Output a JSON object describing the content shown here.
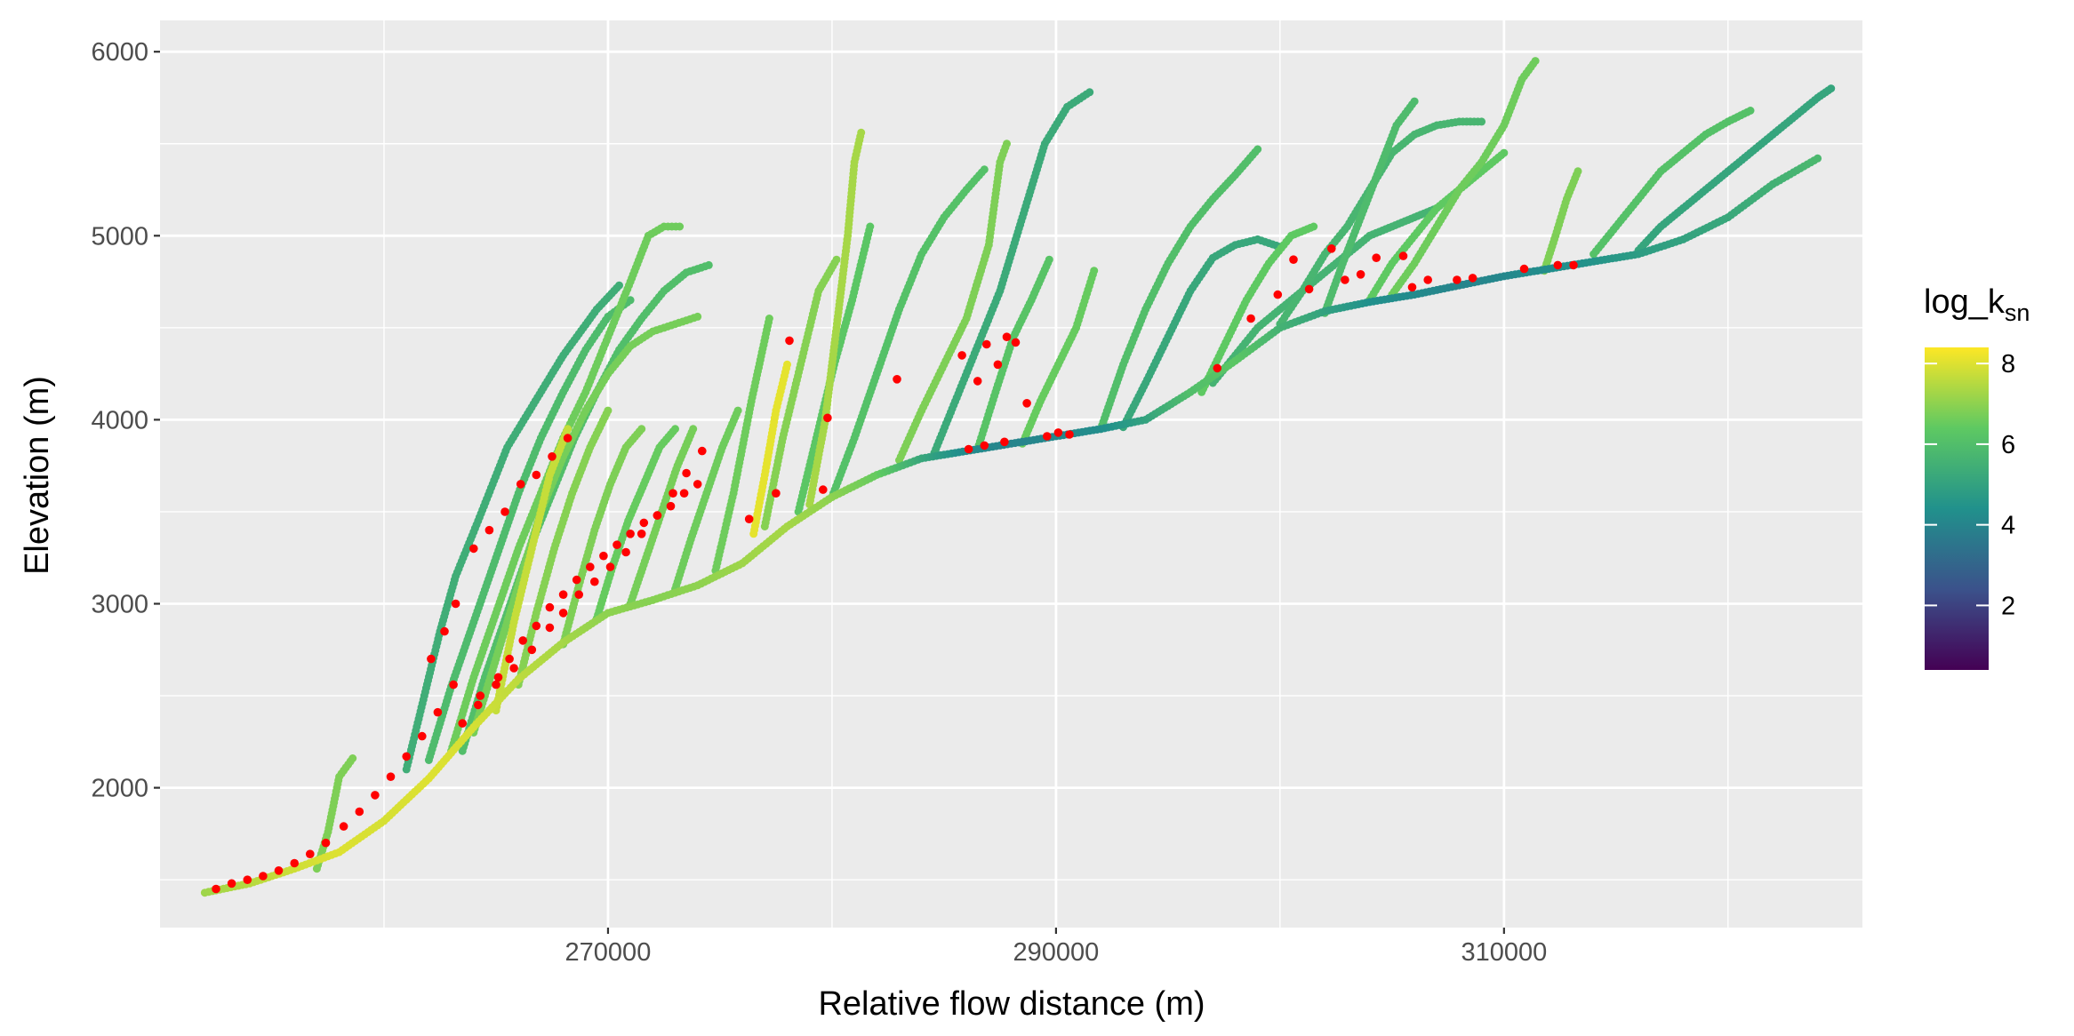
{
  "chart_data": {
    "type": "scatter",
    "title": "",
    "xlabel": "Relative flow distance (m)",
    "ylabel": "Elevation (m)",
    "xlim": [
      250000,
      326000
    ],
    "ylim": [
      1240,
      6170
    ],
    "x_ticks": [
      270000,
      290000,
      310000
    ],
    "x_tick_labels": [
      "270000",
      "290000",
      "310000"
    ],
    "y_ticks": [
      2000,
      3000,
      4000,
      5000,
      6000
    ],
    "y_tick_labels": [
      "2000",
      "3000",
      "4000",
      "5000",
      "6000"
    ],
    "grid": true,
    "background": "#ebebeb",
    "legend": {
      "title_main": "log_k",
      "title_sub": "sn",
      "placement": "right",
      "range": [
        0.4,
        8.4
      ],
      "breaks": [
        2,
        4,
        6,
        8
      ],
      "break_labels": [
        "2",
        "4",
        "6",
        "8"
      ],
      "colors": [
        "#440154",
        "#3b528b",
        "#21918c",
        "#5ec962",
        "#fde725"
      ]
    },
    "knickpoint_color": "#ff0000",
    "trunk": {
      "x": [
        252000,
        254000,
        256000,
        258000,
        260000,
        262000,
        264000,
        266000,
        268000,
        270000,
        272000,
        274000,
        276000,
        278000,
        280000,
        282000,
        284000,
        286000,
        288000,
        290000,
        292000,
        294000,
        296000,
        298000,
        300000,
        302000,
        304000,
        306000,
        308000,
        310000,
        312000,
        314000,
        316000,
        318000,
        320000,
        322000,
        324000
      ],
      "y": [
        1430,
        1480,
        1560,
        1650,
        1820,
        2050,
        2330,
        2590,
        2790,
        2950,
        3020,
        3100,
        3220,
        3420,
        3580,
        3700,
        3790,
        3830,
        3870,
        3910,
        3950,
        4000,
        4150,
        4320,
        4500,
        4590,
        4640,
        4680,
        4730,
        4780,
        4820,
        4860,
        4900,
        4980,
        5100,
        5280,
        5420
      ],
      "log_ksn": [
        7.2,
        7.5,
        7.8,
        8.0,
        7.9,
        8.0,
        7.9,
        7.6,
        7.3,
        7.0,
        6.9,
        7.0,
        7.2,
        7.3,
        7.0,
        6.5,
        5.2,
        4.2,
        4.0,
        4.1,
        4.3,
        5.0,
        6.0,
        6.3,
        5.6,
        5.0,
        4.4,
        4.2,
        4.0,
        4.1,
        4.3,
        4.5,
        4.8,
        5.0,
        5.2,
        5.5,
        5.8
      ]
    },
    "tributaries": [
      {
        "x": [
          257000,
          257500,
          258000,
          258600
        ],
        "y": [
          1560,
          1760,
          2060,
          2160
        ],
        "log_ksn": 6.8
      },
      {
        "x": [
          261000,
          261800,
          262500,
          263200,
          264200,
          265500,
          266500,
          268000,
          269500,
          270500
        ],
        "y": [
          2100,
          2500,
          2850,
          3150,
          3450,
          3850,
          4050,
          4350,
          4600,
          4730
        ],
        "log_ksn": 5.4
      },
      {
        "x": [
          262000,
          263000,
          264000,
          265000,
          266000,
          267000,
          268000,
          269000,
          270000,
          271000
        ],
        "y": [
          2150,
          2550,
          2900,
          3250,
          3600,
          3900,
          4150,
          4380,
          4560,
          4650
        ],
        "log_ksn": 5.9
      },
      {
        "x": [
          263000,
          264000,
          265000,
          266000,
          267000,
          268000,
          269000,
          270000,
          271000,
          271800,
          272500,
          273200
        ],
        "y": [
          2200,
          2600,
          2950,
          3300,
          3600,
          3900,
          4150,
          4450,
          4750,
          5000,
          5050,
          5050
        ],
        "log_ksn": 6.6
      },
      {
        "x": [
          263500,
          264500,
          265500,
          266500,
          267500,
          268500,
          269500,
          270500,
          271500,
          272500,
          273500,
          274500
        ],
        "y": [
          2200,
          2600,
          2950,
          3300,
          3600,
          3900,
          4150,
          4380,
          4550,
          4700,
          4800,
          4840
        ],
        "log_ksn": 6.0
      },
      {
        "x": [
          264000,
          265000,
          266000,
          267000,
          268000,
          269000,
          270000,
          271000,
          272000,
          273000,
          274000
        ],
        "y": [
          2300,
          2700,
          3100,
          3500,
          3800,
          4050,
          4250,
          4400,
          4480,
          4520,
          4560
        ],
        "log_ksn": 6.7
      },
      {
        "x": [
          265000,
          265800,
          266600,
          267400,
          268200
        ],
        "y": [
          2420,
          2900,
          3300,
          3700,
          3950
        ],
        "log_ksn": 7.7
      },
      {
        "x": [
          266000,
          266800,
          267600,
          268400,
          269200,
          270000
        ],
        "y": [
          2560,
          2950,
          3300,
          3600,
          3850,
          4050
        ],
        "log_ksn": 6.9
      },
      {
        "x": [
          268000,
          268700,
          269400,
          270100,
          270800,
          271500
        ],
        "y": [
          2780,
          3100,
          3400,
          3650,
          3850,
          3950
        ],
        "log_ksn": 6.8
      },
      {
        "x": [
          269500,
          270200,
          270900,
          271600,
          272300,
          273000
        ],
        "y": [
          2920,
          3200,
          3450,
          3650,
          3850,
          3950
        ],
        "log_ksn": 6.5
      },
      {
        "x": [
          271000,
          271700,
          272400,
          273100,
          273800
        ],
        "y": [
          3000,
          3250,
          3500,
          3750,
          3950
        ],
        "log_ksn": 6.7
      },
      {
        "x": [
          273000,
          273700,
          274400,
          275100,
          275800
        ],
        "y": [
          3080,
          3350,
          3600,
          3850,
          4050
        ],
        "log_ksn": 6.6
      },
      {
        "x": [
          274800,
          275600,
          276400,
          277200
        ],
        "y": [
          3180,
          3600,
          4100,
          4550
        ],
        "log_ksn": 6.6
      },
      {
        "x": [
          276500,
          277000,
          277500,
          278000
        ],
        "y": [
          3380,
          3700,
          4050,
          4300
        ],
        "log_ksn": 8.1
      },
      {
        "x": [
          277000,
          277800,
          278600,
          279400,
          280200
        ],
        "y": [
          3420,
          3900,
          4300,
          4700,
          4870
        ],
        "log_ksn": 6.9
      },
      {
        "x": [
          278500,
          279300,
          280100,
          280900,
          281700
        ],
        "y": [
          3500,
          3900,
          4300,
          4650,
          5050
        ],
        "log_ksn": 6.3
      },
      {
        "x": [
          279000,
          279700,
          280200,
          280700,
          281000,
          281300
        ],
        "y": [
          3540,
          4000,
          4500,
          5000,
          5400,
          5560
        ],
        "log_ksn": 7.3
      },
      {
        "x": [
          280000,
          281000,
          282000,
          283000,
          284000,
          285000,
          286000,
          286800
        ],
        "y": [
          3580,
          3900,
          4250,
          4600,
          4900,
          5100,
          5250,
          5360
        ],
        "log_ksn": 6.1
      },
      {
        "x": [
          283000,
          284000,
          285000,
          286000,
          287000,
          287500,
          287800
        ],
        "y": [
          3780,
          4050,
          4300,
          4550,
          4950,
          5400,
          5500
        ],
        "log_ksn": 6.8
      },
      {
        "x": [
          284500,
          285500,
          286500,
          287500,
          288500,
          289500,
          290500,
          291500
        ],
        "y": [
          3800,
          4100,
          4400,
          4700,
          5100,
          5500,
          5700,
          5780
        ],
        "log_ksn": 5.3
      },
      {
        "x": [
          286500,
          287300,
          288100,
          288900,
          289700
        ],
        "y": [
          3840,
          4150,
          4450,
          4650,
          4870
        ],
        "log_ksn": 6.2
      },
      {
        "x": [
          288500,
          289300,
          290100,
          290900,
          291700
        ],
        "y": [
          3870,
          4100,
          4300,
          4500,
          4810
        ],
        "log_ksn": 6.5
      },
      {
        "x": [
          292000,
          293000,
          294000,
          295000,
          296000,
          297000,
          298000,
          299000
        ],
        "y": [
          3950,
          4300,
          4600,
          4850,
          5050,
          5200,
          5330,
          5470
        ],
        "log_ksn": 6.0
      },
      {
        "x": [
          293000,
          294000,
          295000,
          296000,
          297000,
          298000,
          299000,
          300000
        ],
        "y": [
          3960,
          4200,
          4450,
          4700,
          4880,
          4950,
          4980,
          4940
        ],
        "log_ksn": 5.2
      },
      {
        "x": [
          296500,
          297500,
          298500,
          299500,
          300500,
          301500
        ],
        "y": [
          4150,
          4400,
          4650,
          4850,
          5000,
          5050
        ],
        "log_ksn": 6.4
      },
      {
        "x": [
          297000,
          298000,
          299000,
          300000,
          301000,
          302000,
          303000,
          304000,
          305000,
          306000,
          307000
        ],
        "y": [
          4200,
          4350,
          4500,
          4600,
          4700,
          4800,
          4900,
          5000,
          5050,
          5100,
          5150
        ],
        "log_ksn": 5.6
      },
      {
        "x": [
          300000,
          301000,
          302000,
          303000,
          304000,
          305000,
          306000,
          307000,
          308000,
          309000
        ],
        "y": [
          4520,
          4700,
          4900,
          5050,
          5250,
          5450,
          5550,
          5600,
          5620,
          5620
        ],
        "log_ksn": 5.7
      },
      {
        "x": [
          302000,
          302800,
          303600,
          304400,
          305200,
          306000
        ],
        "y": [
          4580,
          4850,
          5100,
          5350,
          5600,
          5730
        ],
        "log_ksn": 5.9
      },
      {
        "x": [
          304000,
          305000,
          306000,
          307000,
          308000,
          309000,
          310000
        ],
        "y": [
          4650,
          4850,
          5000,
          5150,
          5250,
          5350,
          5450
        ],
        "log_ksn": 6.4
      },
      {
        "x": [
          305000,
          306000,
          307000,
          308000,
          309000,
          310000,
          310800,
          311400
        ],
        "y": [
          4680,
          4850,
          5050,
          5250,
          5400,
          5600,
          5850,
          5950
        ],
        "log_ksn": 6.6
      },
      {
        "x": [
          311800,
          312300,
          312800,
          313300
        ],
        "y": [
          4810,
          5000,
          5200,
          5350
        ],
        "log_ksn": 6.8
      },
      {
        "x": [
          314000,
          315000,
          316000,
          317000,
          318000,
          319000,
          320000,
          321000
        ],
        "y": [
          4900,
          5050,
          5200,
          5350,
          5450,
          5550,
          5620,
          5680
        ],
        "log_ksn": 6.1
      },
      {
        "x": [
          316000,
          317000,
          318000,
          319000,
          320000,
          321000,
          322000,
          323000,
          324000,
          324600
        ],
        "y": [
          4920,
          5050,
          5150,
          5250,
          5350,
          5450,
          5550,
          5650,
          5750,
          5800
        ],
        "log_ksn": 5.1
      }
    ],
    "knickpoints": {
      "x": [
        252500,
        253200,
        253900,
        254600,
        255300,
        256000,
        256700,
        257400,
        258200,
        258900,
        259600,
        260300,
        261000,
        261700,
        262400,
        263100,
        262100,
        262700,
        263200,
        264300,
        265100,
        265600,
        266200,
        266800,
        267400,
        268000,
        268600,
        269200,
        269800,
        270400,
        271000,
        271600,
        272200,
        272800,
        273400,
        274000,
        264000,
        264700,
        265400,
        266100,
        266800,
        267500,
        268200,
        263500,
        264200,
        265000,
        265800,
        266600,
        267400,
        268000,
        268700,
        269400,
        270100,
        270800,
        271500,
        272200,
        272900,
        273500,
        274200,
        276300,
        277500,
        278100,
        279600,
        279800,
        282900,
        285800,
        286500,
        286900,
        287400,
        287800,
        288200,
        288700,
        286100,
        286800,
        287700,
        289600,
        290100,
        290600,
        297200,
        298700,
        299900,
        300600,
        301300,
        302300,
        302900,
        303600,
        304300,
        305500,
        305900,
        306600,
        307900,
        308600,
        310900,
        312400,
        313100
      ],
      "y": [
        1450,
        1480,
        1500,
        1520,
        1550,
        1590,
        1640,
        1700,
        1790,
        1870,
        1960,
        2060,
        2170,
        2280,
        2410,
        2560,
        2700,
        2850,
        3000,
        2500,
        2600,
        2700,
        2800,
        2880,
        2980,
        3050,
        3130,
        3200,
        3260,
        3320,
        3380,
        3440,
        3480,
        3530,
        3600,
        3650,
        3300,
        3400,
        3500,
        3650,
        3700,
        3800,
        3900,
        2350,
        2450,
        2560,
        2650,
        2750,
        2870,
        2950,
        3050,
        3120,
        3200,
        3280,
        3380,
        3480,
        3600,
        3710,
        3830,
        3460,
        3600,
        4430,
        3620,
        4010,
        4220,
        4350,
        4210,
        4410,
        4300,
        4450,
        4420,
        4090,
        3840,
        3860,
        3880,
        3910,
        3930,
        3920,
        4280,
        4550,
        4680,
        4870,
        4710,
        4930,
        4760,
        4790,
        4880,
        4890,
        4720,
        4760,
        4760,
        4770,
        4820,
        4840,
        4840
      ],
      "color": "#ff0000"
    }
  }
}
